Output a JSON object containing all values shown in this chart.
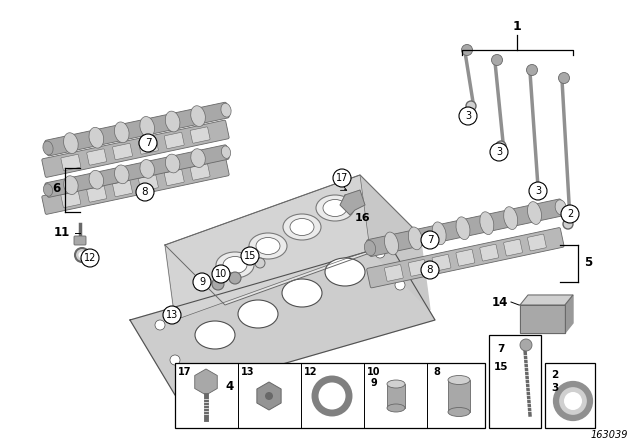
{
  "bg_color": "#ffffff",
  "fig_width": 6.4,
  "fig_height": 4.48,
  "dpi": 100,
  "diagram_id": "163039",
  "gray_light": "#d0d0d0",
  "gray_mid": "#a8a8a8",
  "gray_dark": "#686868",
  "gray_cam": "#b0b0b0",
  "gray_head": "#e8e8e8",
  "gray_gasket": "#c0c0c0"
}
